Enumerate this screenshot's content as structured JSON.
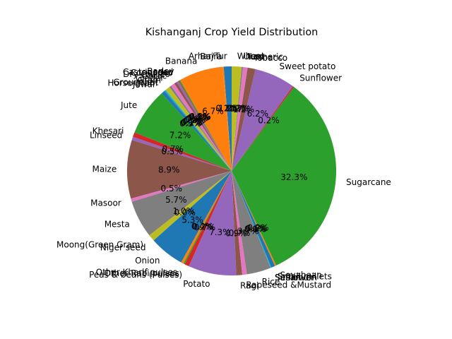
{
  "chart_data": {
    "type": "pie",
    "title": "Kishanganj Crop Yield Distribution",
    "start_angle_deg": 90,
    "counterclockwise": true,
    "slices": [
      {
        "label": "Arhar/Tur",
        "value": 1.2,
        "pct_label": "1.2%",
        "color": "#1f77b4"
      },
      {
        "label": "Bajra",
        "value": 0.2,
        "pct_label": "0.2%",
        "color": "#ff7f0e"
      },
      {
        "label": "Banana",
        "value": 6.7,
        "pct_label": "6.7%",
        "color": "#ff7f0e"
      },
      {
        "label": "Barley",
        "value": 0.2,
        "pct_label": "0.2%",
        "color": "#2ca02c"
      },
      {
        "label": "Castor seed",
        "value": 0.1,
        "pct_label": "0.1%",
        "color": "#d62728"
      },
      {
        "label": "Coriander",
        "value": 0.3,
        "pct_label": "0.3%",
        "color": "#9467bd"
      },
      {
        "label": "Dry chillies",
        "value": 0.4,
        "pct_label": "0.4%",
        "color": "#8c564b"
      },
      {
        "label": "Garlic",
        "value": 0.6,
        "pct_label": "0.6%",
        "color": "#e377c2"
      },
      {
        "label": "Ginger",
        "value": 0.3,
        "pct_label": "0.3%",
        "color": "#7f7f7f"
      },
      {
        "label": "Gram",
        "value": 0.7,
        "pct_label": "0.7%",
        "color": "#bcbd22"
      },
      {
        "label": "Groundnut",
        "value": 0.2,
        "pct_label": "0.2%",
        "color": "#17becf"
      },
      {
        "label": "Horse-gram",
        "value": 0.1,
        "pct_label": "0.1%",
        "color": "#1f77b4"
      },
      {
        "label": "Jowar",
        "value": 0.5,
        "pct_label": "0.5%",
        "color": "#1f77b4"
      },
      {
        "label": "Jute",
        "value": 7.2,
        "pct_label": "7.2%",
        "color": "#2ca02c"
      },
      {
        "label": "Khesari",
        "value": 0.7,
        "pct_label": "0.7%",
        "color": "#d62728"
      },
      {
        "label": "Linseed",
        "value": 0.5,
        "pct_label": "0.5%",
        "color": "#9467bd"
      },
      {
        "label": "Maize",
        "value": 8.9,
        "pct_label": "8.9%",
        "color": "#8c564b"
      },
      {
        "label": "Masoor",
        "value": 0.5,
        "pct_label": "0.5%",
        "color": "#e377c2"
      },
      {
        "label": "Mesta",
        "value": 5.7,
        "pct_label": "5.7%",
        "color": "#7f7f7f"
      },
      {
        "label": "Moong(Green Gram)",
        "value": 1.0,
        "pct_label": "1.0%",
        "color": "#bcbd22"
      },
      {
        "label": "Niger seed",
        "value": 0.0,
        "pct_label": "0.0%",
        "color": "#17becf"
      },
      {
        "label": "Onion",
        "value": 5.3,
        "pct_label": "5.3%",
        "color": "#1f77b4"
      },
      {
        "label": "Other Kharif pulses",
        "value": 0.4,
        "pct_label": "0.4%",
        "color": "#ff7f0e"
      },
      {
        "label": "Other Rabi pulses",
        "value": 0.2,
        "pct_label": "0.2%",
        "color": "#2ca02c"
      },
      {
        "label": "Peas & beans (Pulses)",
        "value": 0.7,
        "pct_label": "0.7%",
        "color": "#d62728"
      },
      {
        "label": "Potato",
        "value": 7.3,
        "pct_label": "7.3%",
        "color": "#9467bd"
      },
      {
        "label": "Ragi",
        "value": 0.9,
        "pct_label": "0.9%",
        "color": "#8c564b"
      },
      {
        "label": "Rapeseed &Mustard",
        "value": 0.7,
        "pct_label": "0.7%",
        "color": "#e377c2"
      },
      {
        "label": "Rice",
        "value": 3.7,
        "pct_label": "3.7%",
        "color": "#7f7f7f"
      },
      {
        "label": "Safflower",
        "value": 0.0,
        "pct_label": "0.0%",
        "color": "#bcbd22"
      },
      {
        "label": "Sesamum",
        "value": 0.1,
        "pct_label": "0.1%",
        "color": "#17becf"
      },
      {
        "label": "Small millets",
        "value": 0.6,
        "pct_label": "0.6%",
        "color": "#1f77b4"
      },
      {
        "label": "Soyabean",
        "value": 0.2,
        "pct_label": "0.2%",
        "color": "#ff7f0e"
      },
      {
        "label": "Sugarcane",
        "value": 32.3,
        "pct_label": "32.3%",
        "color": "#2ca02c"
      },
      {
        "label": "Sunflower",
        "value": 0.2,
        "pct_label": "0.2%",
        "color": "#d62728"
      },
      {
        "label": "Sweet potato",
        "value": 6.2,
        "pct_label": "6.2%",
        "color": "#9467bd"
      },
      {
        "label": "Tobacco",
        "value": 1.2,
        "pct_label": "1.2%",
        "color": "#8c564b"
      },
      {
        "label": "Turmeric",
        "value": 0.7,
        "pct_label": "0.7%",
        "color": "#e377c2"
      },
      {
        "label": "Urad",
        "value": 0.2,
        "pct_label": "0.2%",
        "color": "#7f7f7f"
      },
      {
        "label": "Wheat",
        "value": 1.5,
        "pct_label": "1.5%",
        "color": "#bcbd22"
      }
    ]
  }
}
